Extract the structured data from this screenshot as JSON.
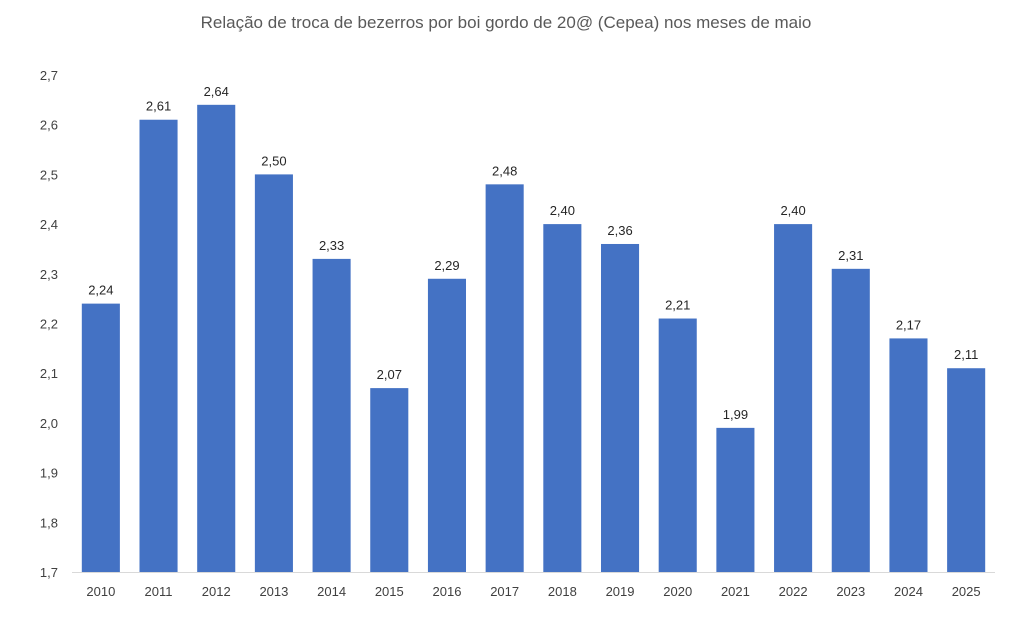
{
  "chart_data": {
    "type": "bar",
    "title": "Relação de troca de bezerros por boi gordo de 20@ (Cepea) nos meses de maio",
    "xlabel": "",
    "ylabel": "",
    "categories": [
      "2010",
      "2011",
      "2012",
      "2013",
      "2014",
      "2015",
      "2016",
      "2017",
      "2018",
      "2019",
      "2020",
      "2021",
      "2022",
      "2023",
      "2024",
      "2025"
    ],
    "values": [
      2.24,
      2.61,
      2.64,
      2.5,
      2.33,
      2.07,
      2.29,
      2.48,
      2.4,
      2.36,
      2.21,
      1.99,
      2.4,
      2.31,
      2.17,
      2.11
    ],
    "data_labels": [
      "2,24",
      "2,61",
      "2,64",
      "2,50",
      "2,33",
      "2,07",
      "2,29",
      "2,48",
      "2,40",
      "2,36",
      "2,21",
      "1,99",
      "2,40",
      "2,31",
      "2,17",
      "2,11"
    ],
    "ylim": [
      1.7,
      2.7
    ],
    "y_ticks": [
      1.7,
      1.8,
      1.9,
      2.0,
      2.1,
      2.2,
      2.3,
      2.4,
      2.5,
      2.6,
      2.7
    ],
    "y_tick_labels": [
      "1,7",
      "1,8",
      "1,9",
      "2,0",
      "2,1",
      "2,2",
      "2,3",
      "2,4",
      "2,5",
      "2,6",
      "2,7"
    ],
    "grid": false,
    "legend": "none",
    "bar_color": "#4472C4",
    "axis_color": "#D9D9D9"
  }
}
